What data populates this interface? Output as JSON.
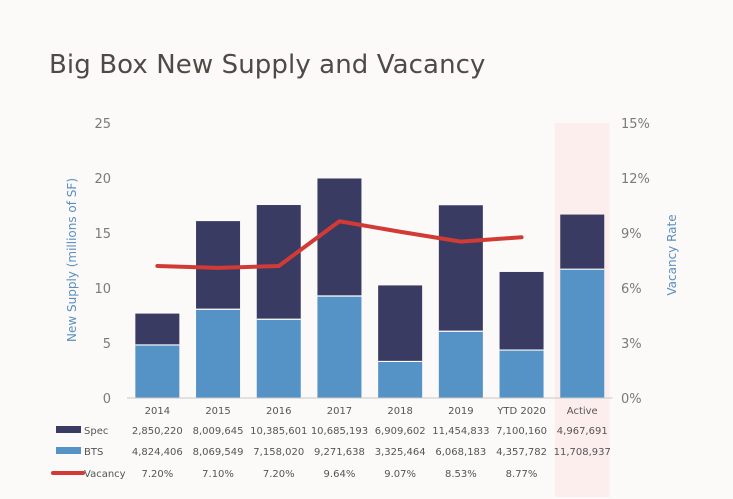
{
  "title": "Big Box New Supply and Vacancy",
  "chart_data": {
    "type": "bar",
    "stacked": true,
    "categories": [
      "2014",
      "2015",
      "2016",
      "2017",
      "2018",
      "2019",
      "YTD 2020",
      "Active"
    ],
    "series": [
      {
        "name": "BTS",
        "color": "#5592c5",
        "values": [
          4.824,
          8.07,
          7.158,
          9.272,
          3.325,
          6.068,
          4.358,
          11.709
        ],
        "table_values": [
          "4,824,406",
          "8,069,549",
          "7,158,020",
          "9,271,638",
          "3,325,464",
          "6,068,183",
          "4,357,782",
          "11,708,937"
        ]
      },
      {
        "name": "Spec",
        "color": "#3a3b63",
        "values": [
          2.85,
          8.01,
          10.385,
          10.685,
          6.91,
          11.455,
          7.1,
          4.968
        ],
        "table_values": [
          "2,850,220",
          "8,009,645",
          "10,385,601",
          "10,685,193",
          "6,909,602",
          "11,454,833",
          "7,100,160",
          "4,967,691"
        ]
      },
      {
        "name": "Vacancy",
        "type": "line",
        "axis": "right",
        "color": "#d23a35",
        "values": [
          7.2,
          7.1,
          7.2,
          9.64,
          9.07,
          8.53,
          8.77,
          null
        ],
        "table_values": [
          "7.20%",
          "7.10%",
          "7.20%",
          "9.64%",
          "9.07%",
          "8.53%",
          "8.77%",
          ""
        ]
      }
    ],
    "ylabel": "New Supply (millions of SF)",
    "ylim": [
      0,
      25
    ],
    "yticks": [
      "0",
      "5",
      "10",
      "15",
      "20",
      "25"
    ],
    "y2label": "Vacancy Rate",
    "y2lim": [
      0,
      15
    ],
    "y2ticks": [
      "0%",
      "3%",
      "6%",
      "9%",
      "12%",
      "15%"
    ],
    "highlight_category": "Active",
    "highlight_color": "#fdeeee",
    "grid": false,
    "legend": "table-left"
  }
}
